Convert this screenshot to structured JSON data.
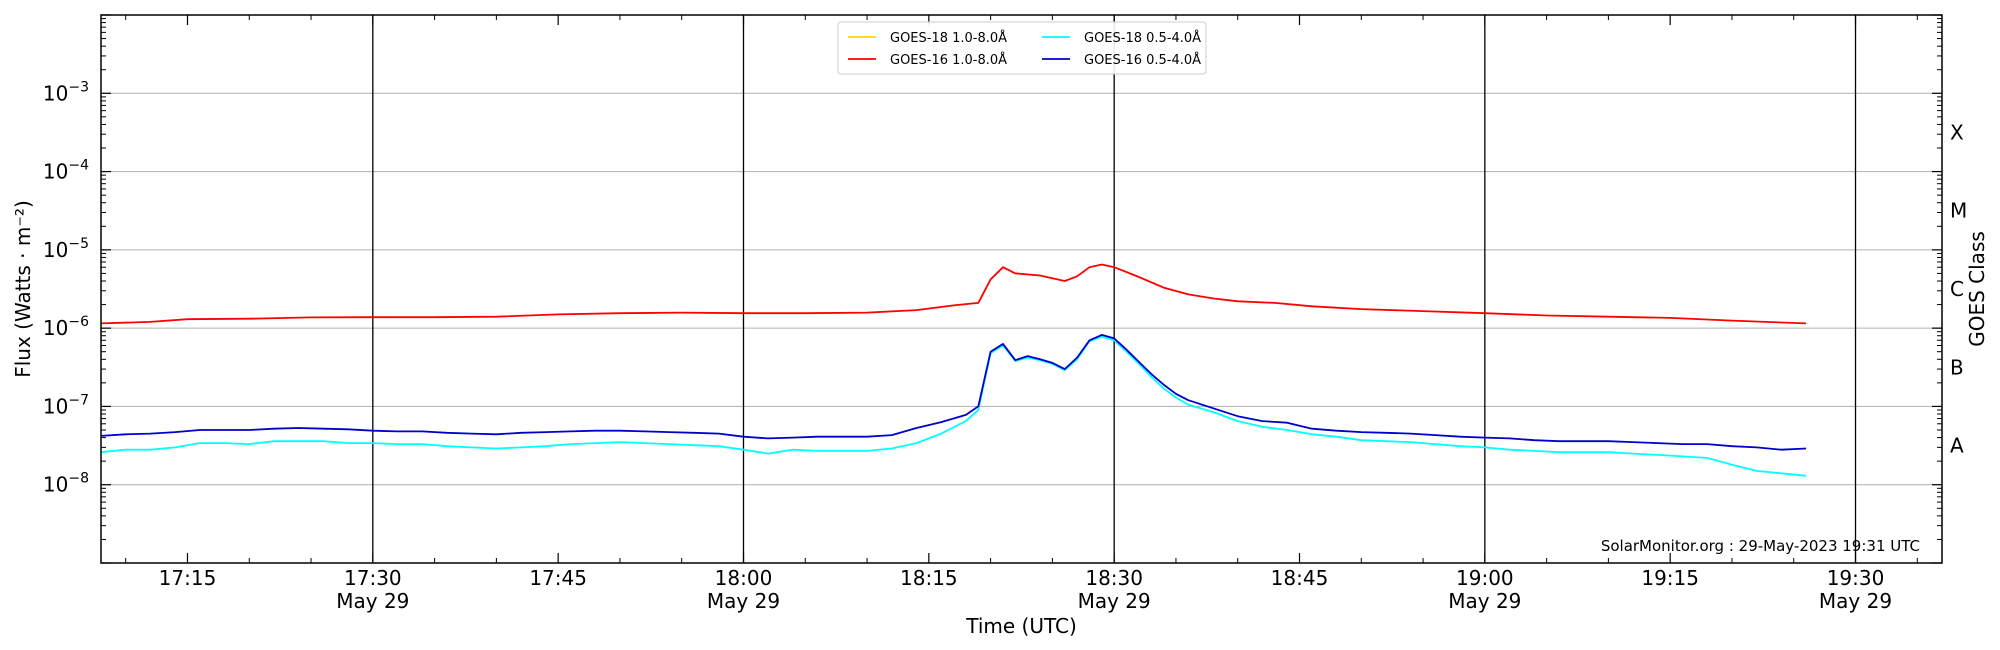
{
  "chart_data": {
    "type": "line",
    "xlabel": "Time (UTC)",
    "ylabel": "Flux (Watts · m⁻²)",
    "y2label": "GOES Class",
    "y_scale": "log",
    "ylim": [
      1e-09,
      0.01
    ],
    "xlim": [
      "17:08",
      "19:37"
    ],
    "y_ticks": [
      {
        "value": 1e-08,
        "base": "10",
        "exp": "−8"
      },
      {
        "value": 1e-07,
        "base": "10",
        "exp": "−7"
      },
      {
        "value": 1e-06,
        "base": "10",
        "exp": "−6"
      },
      {
        "value": 1e-05,
        "base": "10",
        "exp": "−5"
      },
      {
        "value": 0.0001,
        "base": "10",
        "exp": "−4"
      },
      {
        "value": 0.001,
        "base": "10",
        "exp": "−3"
      }
    ],
    "x_ticks": [
      {
        "time": "17:15",
        "label": "17:15",
        "date": ""
      },
      {
        "time": "17:30",
        "label": "17:30",
        "date": "May 29"
      },
      {
        "time": "17:45",
        "label": "17:45",
        "date": ""
      },
      {
        "time": "18:00",
        "label": "18:00",
        "date": "May 29"
      },
      {
        "time": "18:15",
        "label": "18:15",
        "date": ""
      },
      {
        "time": "18:30",
        "label": "18:30",
        "date": "May 29"
      },
      {
        "time": "18:45",
        "label": "18:45",
        "date": ""
      },
      {
        "time": "19:00",
        "label": "19:00",
        "date": "May 29"
      },
      {
        "time": "19:15",
        "label": "19:15",
        "date": ""
      },
      {
        "time": "19:30",
        "label": "19:30",
        "date": "May 29"
      }
    ],
    "vertical_lines": [
      "17:30",
      "18:00",
      "18:30",
      "19:00",
      "19:30"
    ],
    "grid": "horizontal",
    "goes_classes": [
      {
        "label": "A",
        "value": 3.16e-08
      },
      {
        "label": "B",
        "value": 3.16e-07
      },
      {
        "label": "C",
        "value": 3.16e-06
      },
      {
        "label": "M",
        "value": 3.16e-05
      },
      {
        "label": "X",
        "value": 0.000316
      }
    ],
    "legend_position": "top-center",
    "series": [
      {
        "name": "GOES-18 1.0-8.0Å",
        "color": "#ffd700",
        "points": []
      },
      {
        "name": "GOES-18 0.5-4.0Å",
        "color": "#00ffff",
        "points": [
          [
            "17:08",
            2.6e-08
          ],
          [
            "17:10",
            2.8e-08
          ],
          [
            "17:12",
            2.8e-08
          ],
          [
            "17:14",
            3e-08
          ],
          [
            "17:16",
            3.4e-08
          ],
          [
            "17:18",
            3.4e-08
          ],
          [
            "17:20",
            3.3e-08
          ],
          [
            "17:22",
            3.6e-08
          ],
          [
            "17:24",
            3.6e-08
          ],
          [
            "17:26",
            3.6e-08
          ],
          [
            "17:28",
            3.4e-08
          ],
          [
            "17:30",
            3.4e-08
          ],
          [
            "17:32",
            3.3e-08
          ],
          [
            "17:34",
            3.3e-08
          ],
          [
            "17:36",
            3.1e-08
          ],
          [
            "17:38",
            3e-08
          ],
          [
            "17:40",
            2.9e-08
          ],
          [
            "17:42",
            3e-08
          ],
          [
            "17:44",
            3.1e-08
          ],
          [
            "17:46",
            3.3e-08
          ],
          [
            "17:48",
            3.4e-08
          ],
          [
            "17:50",
            3.5e-08
          ],
          [
            "17:52",
            3.4e-08
          ],
          [
            "17:54",
            3.3e-08
          ],
          [
            "17:56",
            3.2e-08
          ],
          [
            "17:58",
            3.1e-08
          ],
          [
            "18:00",
            2.8e-08
          ],
          [
            "18:02",
            2.5e-08
          ],
          [
            "18:04",
            2.8e-08
          ],
          [
            "18:06",
            2.7e-08
          ],
          [
            "18:08",
            2.7e-08
          ],
          [
            "18:10",
            2.7e-08
          ],
          [
            "18:12",
            2.9e-08
          ],
          [
            "18:14",
            3.4e-08
          ],
          [
            "18:16",
            4.5e-08
          ],
          [
            "18:18",
            6.5e-08
          ],
          [
            "18:19",
            9e-08
          ],
          [
            "18:20",
            4.8e-07
          ],
          [
            "18:21",
            6e-07
          ],
          [
            "18:22",
            3.8e-07
          ],
          [
            "18:23",
            4.2e-07
          ],
          [
            "18:24",
            3.9e-07
          ],
          [
            "18:25",
            3.5e-07
          ],
          [
            "18:26",
            2.9e-07
          ],
          [
            "18:27",
            4e-07
          ],
          [
            "18:28",
            6.8e-07
          ],
          [
            "18:29",
            7.8e-07
          ],
          [
            "18:30",
            7e-07
          ],
          [
            "18:31",
            5e-07
          ],
          [
            "18:32",
            3.5e-07
          ],
          [
            "18:33",
            2.4e-07
          ],
          [
            "18:34",
            1.7e-07
          ],
          [
            "18:35",
            1.3e-07
          ],
          [
            "18:36",
            1.05e-07
          ],
          [
            "18:38",
            8.5e-08
          ],
          [
            "18:40",
            6.5e-08
          ],
          [
            "18:42",
            5.5e-08
          ],
          [
            "18:44",
            5e-08
          ],
          [
            "18:46",
            4.4e-08
          ],
          [
            "18:48",
            4.1e-08
          ],
          [
            "18:50",
            3.7e-08
          ],
          [
            "18:52",
            3.6e-08
          ],
          [
            "18:54",
            3.5e-08
          ],
          [
            "18:56",
            3.3e-08
          ],
          [
            "18:58",
            3.1e-08
          ],
          [
            "19:00",
            3e-08
          ],
          [
            "19:02",
            2.8e-08
          ],
          [
            "19:04",
            2.7e-08
          ],
          [
            "19:06",
            2.6e-08
          ],
          [
            "19:08",
            2.6e-08
          ],
          [
            "19:10",
            2.6e-08
          ],
          [
            "19:12",
            2.5e-08
          ],
          [
            "19:14",
            2.4e-08
          ],
          [
            "19:16",
            2.3e-08
          ],
          [
            "19:18",
            2.2e-08
          ],
          [
            "19:20",
            1.8e-08
          ],
          [
            "19:22",
            1.5e-08
          ],
          [
            "19:24",
            1.4e-08
          ],
          [
            "19:26",
            1.3e-08
          ]
        ]
      },
      {
        "name": "GOES-16 1.0-8.0Å",
        "color": "#ff0000",
        "points": [
          [
            "17:08",
            1.15e-06
          ],
          [
            "17:12",
            1.2e-06
          ],
          [
            "17:15",
            1.3e-06
          ],
          [
            "17:20",
            1.32e-06
          ],
          [
            "17:25",
            1.37e-06
          ],
          [
            "17:30",
            1.38e-06
          ],
          [
            "17:35",
            1.38e-06
          ],
          [
            "17:40",
            1.4e-06
          ],
          [
            "17:45",
            1.5e-06
          ],
          [
            "17:50",
            1.55e-06
          ],
          [
            "17:55",
            1.58e-06
          ],
          [
            "18:00",
            1.55e-06
          ],
          [
            "18:05",
            1.55e-06
          ],
          [
            "18:10",
            1.58e-06
          ],
          [
            "18:14",
            1.7e-06
          ],
          [
            "18:17",
            1.95e-06
          ],
          [
            "18:19",
            2.1e-06
          ],
          [
            "18:20",
            4.2e-06
          ],
          [
            "18:21",
            6e-06
          ],
          [
            "18:22",
            5e-06
          ],
          [
            "18:24",
            4.7e-06
          ],
          [
            "18:26",
            4e-06
          ],
          [
            "18:27",
            4.6e-06
          ],
          [
            "18:28",
            6e-06
          ],
          [
            "18:29",
            6.5e-06
          ],
          [
            "18:30",
            6e-06
          ],
          [
            "18:32",
            4.5e-06
          ],
          [
            "18:34",
            3.3e-06
          ],
          [
            "18:36",
            2.7e-06
          ],
          [
            "18:38",
            2.4e-06
          ],
          [
            "18:40",
            2.2e-06
          ],
          [
            "18:43",
            2.1e-06
          ],
          [
            "18:46",
            1.9e-06
          ],
          [
            "18:50",
            1.75e-06
          ],
          [
            "18:55",
            1.65e-06
          ],
          [
            "19:00",
            1.55e-06
          ],
          [
            "19:05",
            1.45e-06
          ],
          [
            "19:10",
            1.4e-06
          ],
          [
            "19:15",
            1.35e-06
          ],
          [
            "19:20",
            1.25e-06
          ],
          [
            "19:26",
            1.15e-06
          ]
        ]
      },
      {
        "name": "GOES-16 0.5-4.0Å",
        "color": "#0000cc",
        "points": [
          [
            "17:08",
            4.2e-08
          ],
          [
            "17:10",
            4.4e-08
          ],
          [
            "17:12",
            4.5e-08
          ],
          [
            "17:14",
            4.7e-08
          ],
          [
            "17:16",
            5e-08
          ],
          [
            "17:18",
            5e-08
          ],
          [
            "17:20",
            5e-08
          ],
          [
            "17:22",
            5.2e-08
          ],
          [
            "17:24",
            5.3e-08
          ],
          [
            "17:26",
            5.2e-08
          ],
          [
            "17:28",
            5.1e-08
          ],
          [
            "17:30",
            4.9e-08
          ],
          [
            "17:32",
            4.8e-08
          ],
          [
            "17:34",
            4.8e-08
          ],
          [
            "17:36",
            4.6e-08
          ],
          [
            "17:38",
            4.5e-08
          ],
          [
            "17:40",
            4.4e-08
          ],
          [
            "17:42",
            4.6e-08
          ],
          [
            "17:44",
            4.7e-08
          ],
          [
            "17:46",
            4.8e-08
          ],
          [
            "17:48",
            4.9e-08
          ],
          [
            "17:50",
            4.9e-08
          ],
          [
            "17:52",
            4.8e-08
          ],
          [
            "17:54",
            4.7e-08
          ],
          [
            "17:56",
            4.6e-08
          ],
          [
            "17:58",
            4.5e-08
          ],
          [
            "18:00",
            4.1e-08
          ],
          [
            "18:02",
            3.9e-08
          ],
          [
            "18:04",
            4e-08
          ],
          [
            "18:06",
            4.1e-08
          ],
          [
            "18:08",
            4.1e-08
          ],
          [
            "18:10",
            4.1e-08
          ],
          [
            "18:12",
            4.3e-08
          ],
          [
            "18:14",
            5.3e-08
          ],
          [
            "18:16",
            6.3e-08
          ],
          [
            "18:18",
            7.8e-08
          ],
          [
            "18:19",
            1e-07
          ],
          [
            "18:20",
            5e-07
          ],
          [
            "18:21",
            6.3e-07
          ],
          [
            "18:22",
            3.9e-07
          ],
          [
            "18:23",
            4.4e-07
          ],
          [
            "18:24",
            4e-07
          ],
          [
            "18:25",
            3.6e-07
          ],
          [
            "18:26",
            3e-07
          ],
          [
            "18:27",
            4.2e-07
          ],
          [
            "18:28",
            7e-07
          ],
          [
            "18:29",
            8.2e-07
          ],
          [
            "18:30",
            7.4e-07
          ],
          [
            "18:31",
            5.3e-07
          ],
          [
            "18:32",
            3.7e-07
          ],
          [
            "18:33",
            2.6e-07
          ],
          [
            "18:34",
            1.9e-07
          ],
          [
            "18:35",
            1.45e-07
          ],
          [
            "18:36",
            1.2e-07
          ],
          [
            "18:38",
            9.5e-08
          ],
          [
            "18:40",
            7.5e-08
          ],
          [
            "18:42",
            6.5e-08
          ],
          [
            "18:44",
            6.2e-08
          ],
          [
            "18:46",
            5.2e-08
          ],
          [
            "18:48",
            4.9e-08
          ],
          [
            "18:50",
            4.7e-08
          ],
          [
            "18:52",
            4.6e-08
          ],
          [
            "18:54",
            4.5e-08
          ],
          [
            "18:56",
            4.3e-08
          ],
          [
            "18:58",
            4.1e-08
          ],
          [
            "19:00",
            4e-08
          ],
          [
            "19:02",
            3.9e-08
          ],
          [
            "19:04",
            3.7e-08
          ],
          [
            "19:06",
            3.6e-08
          ],
          [
            "19:08",
            3.6e-08
          ],
          [
            "19:10",
            3.6e-08
          ],
          [
            "19:12",
            3.5e-08
          ],
          [
            "19:14",
            3.4e-08
          ],
          [
            "19:16",
            3.3e-08
          ],
          [
            "19:18",
            3.3e-08
          ],
          [
            "19:20",
            3.1e-08
          ],
          [
            "19:22",
            3e-08
          ],
          [
            "19:24",
            2.8e-08
          ],
          [
            "19:26",
            2.9e-08
          ]
        ]
      }
    ],
    "annotation": "SolarMonitor.org : 29-May-2023 19:31 UTC"
  }
}
